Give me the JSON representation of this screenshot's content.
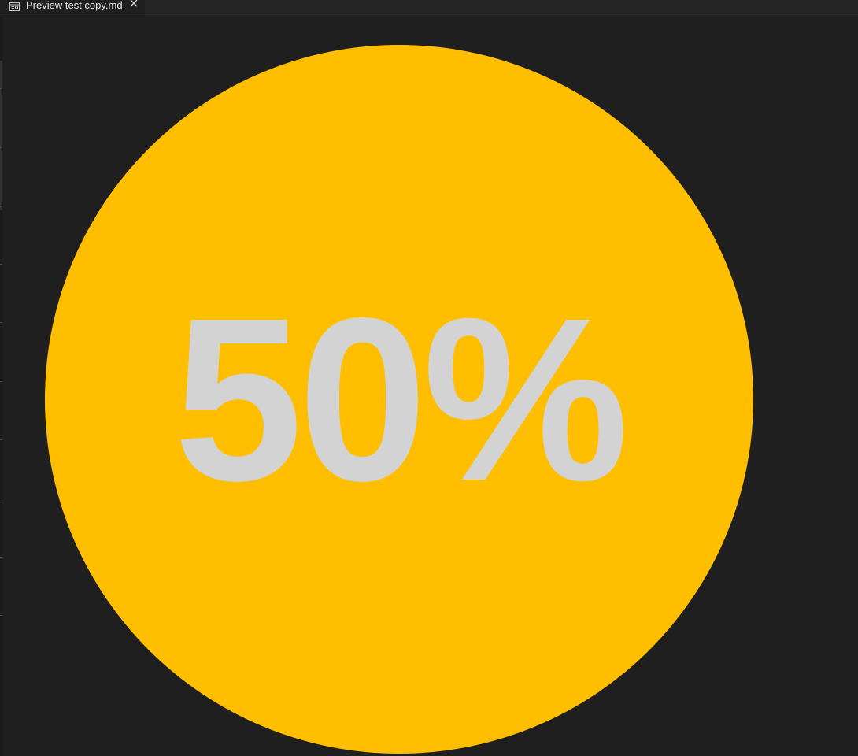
{
  "tab": {
    "label": "Preview test copy.md",
    "icon": "preview-icon",
    "close_icon": "close-icon"
  },
  "preview": {
    "percent_label": "50%",
    "progress": 0.5,
    "circle_color": "#ffbe00",
    "text_color": "#d3d3d3",
    "background_color": "#1f1f1f"
  }
}
